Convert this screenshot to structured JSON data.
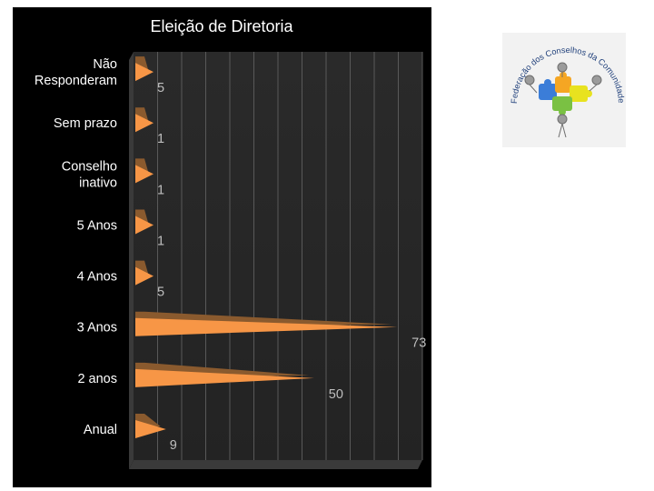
{
  "chart_data": {
    "type": "bar",
    "orientation": "horizontal",
    "title": "Eleição de Diretoria",
    "xlabel": "",
    "ylabel": "",
    "categories": [
      "Não Responderam",
      "Sem prazo",
      "Conselho inativo",
      "5 Anos",
      "4 Anos",
      "3 Anos",
      "2 anos",
      "Anual"
    ],
    "values": [
      5,
      1,
      1,
      1,
      5,
      73,
      50,
      9
    ],
    "category_label_lines": [
      [
        "Não",
        "Responderam"
      ],
      [
        "Sem prazo"
      ],
      [
        "Conselho",
        "inativo"
      ],
      [
        "5 Anos"
      ],
      [
        "4 Anos"
      ],
      [
        "3 Anos"
      ],
      [
        "2 anos"
      ],
      [
        "Anual"
      ]
    ],
    "xlim": [
      0,
      80
    ],
    "gridlines": true,
    "legend": "none",
    "colors": {
      "bar": "#f79646",
      "bar_shadow": "#8a5a2e",
      "background": "#000000",
      "plot_area": "#262626",
      "floor": "#3a3a3a",
      "grid": "#595959",
      "text": "#ffffff",
      "axis_text": "#bfbfbf"
    }
  },
  "logo": {
    "text": "Federação dos Conselhos da Comunidade do Paraná",
    "colors": [
      "#3b7dd8",
      "#f5a623",
      "#e8e21f",
      "#7ac143",
      "#9b9b9b"
    ]
  }
}
